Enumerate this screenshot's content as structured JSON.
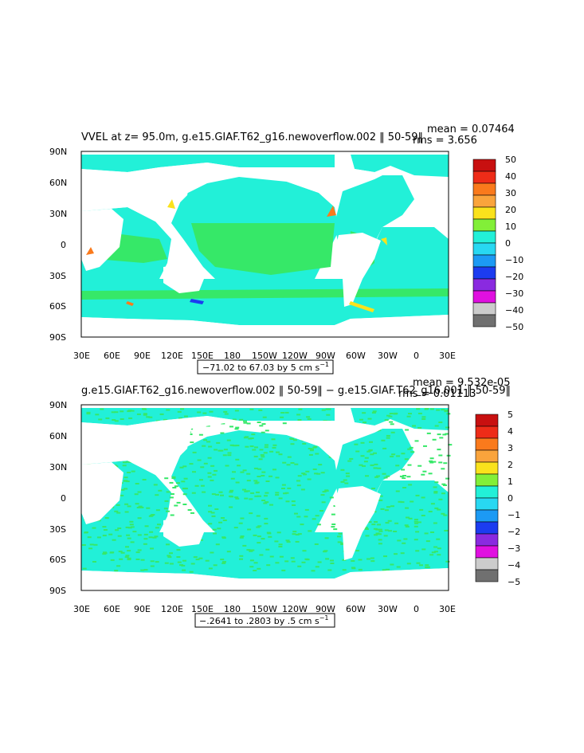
{
  "panels": [
    {
      "title": "VVEL at z=  95.0m, g.e15.GIAF.T62_g16.newoverflow.002 ‖ 50-59‖",
      "mean_label": "mean = 0.07464",
      "rms_label": "rms = 3.656",
      "range_label": "−71.02 to 67.03 by 5 cm s",
      "range_sup": "−1",
      "colorbar": {
        "labels": [
          "50",
          "40",
          "30",
          "20",
          "10",
          "0",
          "−10",
          "−20",
          "−30",
          "−40",
          "−50"
        ]
      },
      "ocean_color": "#22f0d8",
      "band_color": "#36e868"
    },
    {
      "title": "g.e15.GIAF.T62_g16.newoverflow.002 ‖ 50-59‖ − g.e15.GIAF.T62_g16.001 ‖ 50-59‖",
      "mean_label": "mean = 9.532e-05",
      "rms_label": "rms = 0.01113",
      "range_label": "−.2641 to .2803 by .5 cm s",
      "range_sup": "−1",
      "colorbar": {
        "labels": [
          "5",
          "4",
          "3",
          "2",
          "1",
          "0",
          "−1",
          "−2",
          "−3",
          "−4",
          "−5"
        ]
      },
      "ocean_color": "#22f0d8",
      "band_color": "#36e868"
    }
  ],
  "map_axes": {
    "lat_labels": [
      "90N",
      "60N",
      "30N",
      "0",
      "30S",
      "60S",
      "90S"
    ],
    "lon_labels": [
      "30E",
      "60E",
      "90E",
      "120E",
      "150E",
      "180",
      "150W",
      "120W",
      "90W",
      "60W",
      "30W",
      "0",
      "30E"
    ]
  },
  "colorbar_colors": [
    "#c81010",
    "#ee2c18",
    "#fa7a1c",
    "#faa43c",
    "#fae21c",
    "#82ef38",
    "#22f0d8",
    "#28d8f2",
    "#1c9af4",
    "#1c3cf0",
    "#8a2ae0",
    "#e010e0",
    "#cccccc",
    "#707070"
  ]
}
